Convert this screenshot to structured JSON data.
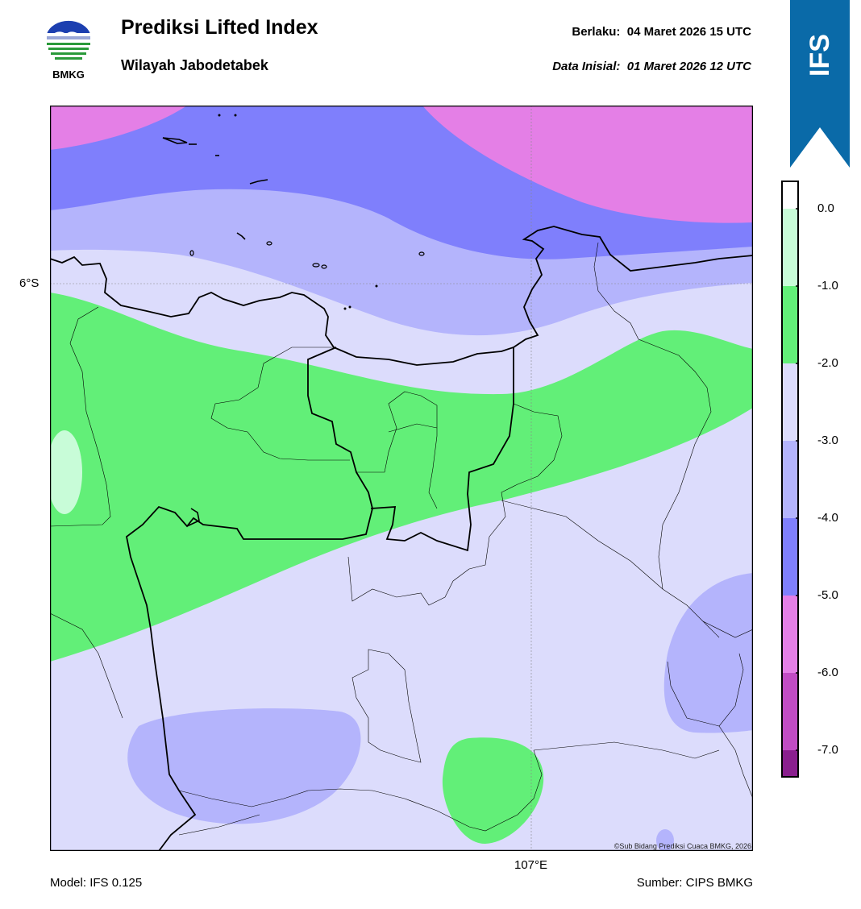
{
  "header": {
    "title": "Prediksi Lifted Index",
    "subtitle": "Wilayah Jabodetabek",
    "valid_label": "Berlaku:",
    "valid_time": "04 Maret 2026 15 UTC",
    "init_label": "Data Inisial:",
    "init_time": "01 Maret 2026 12 UTC"
  },
  "logo": {
    "text": "BMKG",
    "icon": "bmkg-logo-icon"
  },
  "ribbon": {
    "text": "IFS",
    "color": "#0a6aa8"
  },
  "map": {
    "lat_label": "6°S",
    "lon_label": "107°E",
    "copyright": "©Sub Bidang Prediksi Cuaca BMKG, 2026"
  },
  "colorbar": {
    "labels": [
      "0.0",
      "-1.0",
      "-2.0",
      "-3.0",
      "-4.0",
      "-5.0",
      "-6.0",
      "-7.0"
    ],
    "colors": {
      "0_to_-1": "#c8fcd8",
      "-1_to_-2": "#62ef78",
      "-2_to_-3": "#dcdcfc",
      "-3_to_-4": "#b4b4fc",
      "-4_to_-5": "#7f7ffc",
      "-5_to_-6": "#e47fe6",
      "-6_to_-7": "#c14cc4",
      "below_-7": "#8a1f8e"
    }
  },
  "footer": {
    "model": "Model: IFS 0.125",
    "source": "Sumber: CIPS BMKG"
  }
}
